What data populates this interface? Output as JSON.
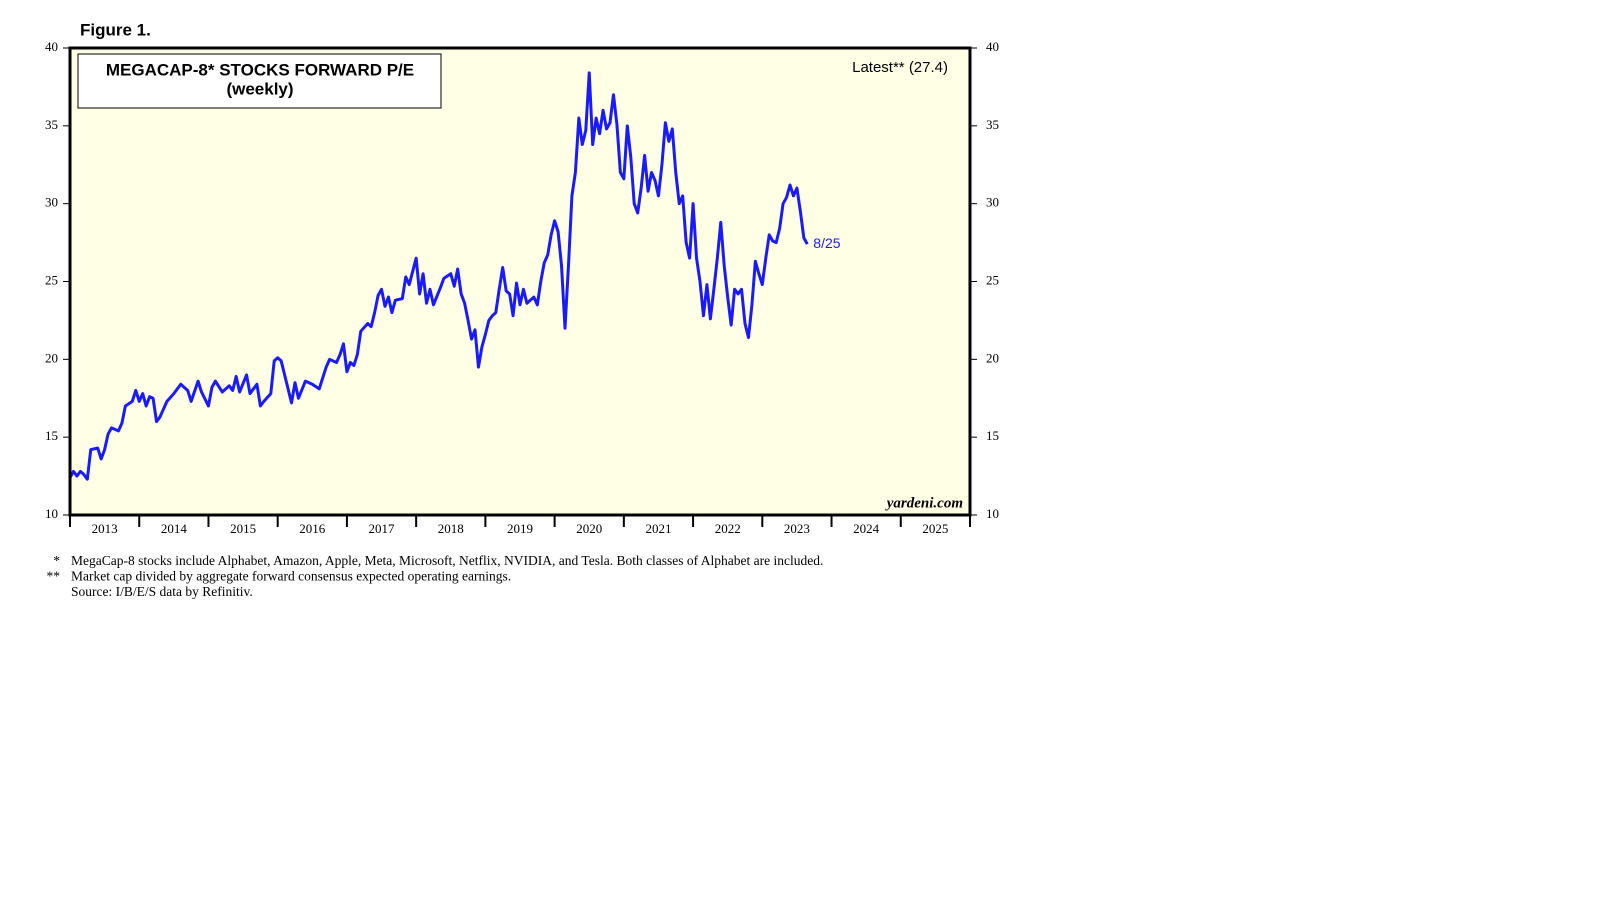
{
  "figure_label": "Figure 1.",
  "chart_data": {
    "type": "line",
    "title": "MEGACAP-8* STOCKS FORWARD P/E",
    "subtitle": "(weekly)",
    "annotation": "Latest** (27.4)",
    "end_label": "8/25",
    "watermark": "yardeni.com",
    "xlim": [
      2013,
      2026
    ],
    "xticks": [
      {
        "value": 2013.5,
        "label": "2013"
      },
      {
        "value": 2014.5,
        "label": "2014"
      },
      {
        "value": 2015.5,
        "label": "2015"
      },
      {
        "value": 2016.5,
        "label": "2016"
      },
      {
        "value": 2017.5,
        "label": "2017"
      },
      {
        "value": 2018.5,
        "label": "2018"
      },
      {
        "value": 2019.5,
        "label": "2019"
      },
      {
        "value": 2020.5,
        "label": "2020"
      },
      {
        "value": 2021.5,
        "label": "2021"
      },
      {
        "value": 2022.5,
        "label": "2022"
      },
      {
        "value": 2023.5,
        "label": "2023"
      },
      {
        "value": 2024.5,
        "label": "2024"
      },
      {
        "value": 2025.5,
        "label": "2025"
      }
    ],
    "ylim": [
      10,
      40
    ],
    "yticks": [
      10,
      15,
      20,
      25,
      30,
      35,
      40
    ],
    "y2lim": [
      10,
      40
    ],
    "y2ticks": [
      10,
      15,
      20,
      25,
      30,
      35,
      40
    ],
    "x": [
      2013.0,
      2013.05,
      2013.1,
      2013.15,
      2013.2,
      2013.25,
      2013.3,
      2013.4,
      2013.45,
      2013.5,
      2013.55,
      2013.6,
      2013.7,
      2013.75,
      2013.8,
      2013.9,
      2013.95,
      2014.0,
      2014.05,
      2014.1,
      2014.15,
      2014.2,
      2014.25,
      2014.3,
      2014.4,
      2014.5,
      2014.6,
      2014.7,
      2014.75,
      2014.85,
      2014.9,
      2015.0,
      2015.05,
      2015.1,
      2015.2,
      2015.3,
      2015.35,
      2015.4,
      2015.45,
      2015.55,
      2015.6,
      2015.7,
      2015.75,
      2015.8,
      2015.9,
      2015.95,
      2016.0,
      2016.05,
      2016.1,
      2016.15,
      2016.2,
      2016.25,
      2016.3,
      2016.4,
      2016.5,
      2016.6,
      2016.7,
      2016.75,
      2016.85,
      2016.9,
      2016.95,
      2017.0,
      2017.05,
      2017.1,
      2017.15,
      2017.2,
      2017.3,
      2017.35,
      2017.4,
      2017.45,
      2017.5,
      2017.55,
      2017.6,
      2017.65,
      2017.7,
      2017.8,
      2017.85,
      2017.9,
      2018.0,
      2018.05,
      2018.1,
      2018.15,
      2018.2,
      2018.25,
      2018.35,
      2018.4,
      2018.5,
      2018.55,
      2018.6,
      2018.65,
      2018.7,
      2018.75,
      2018.8,
      2018.85,
      2018.9,
      2018.95,
      2019.0,
      2019.05,
      2019.1,
      2019.15,
      2019.2,
      2019.25,
      2019.3,
      2019.35,
      2019.4,
      2019.45,
      2019.5,
      2019.55,
      2019.6,
      2019.7,
      2019.75,
      2019.8,
      2019.85,
      2019.9,
      2019.95,
      2020.0,
      2020.05,
      2020.1,
      2020.15,
      2020.2,
      2020.25,
      2020.3,
      2020.35,
      2020.4,
      2020.45,
      2020.5,
      2020.55,
      2020.6,
      2020.65,
      2020.7,
      2020.75,
      2020.8,
      2020.85,
      2020.9,
      2020.95,
      2021.0,
      2021.05,
      2021.1,
      2021.15,
      2021.2,
      2021.25,
      2021.3,
      2021.35,
      2021.4,
      2021.45,
      2021.5,
      2021.55,
      2021.6,
      2021.65,
      2021.7,
      2021.75,
      2021.8,
      2021.85,
      2021.9,
      2021.95,
      2022.0,
      2022.05,
      2022.1,
      2022.15,
      2022.2,
      2022.25,
      2022.3,
      2022.35,
      2022.4,
      2022.45,
      2022.5,
      2022.55,
      2022.6,
      2022.65,
      2022.7,
      2022.75,
      2022.8,
      2022.85,
      2022.9,
      2022.95,
      2023.0,
      2023.05,
      2023.1,
      2023.15,
      2023.2,
      2023.25,
      2023.3,
      2023.35,
      2023.4,
      2023.45,
      2023.5,
      2023.55,
      2023.6,
      2023.65
    ],
    "series": [
      {
        "name": "MegaCap-8 forward P/E",
        "color": "#1a1aff",
        "values": [
          12.4,
          12.8,
          12.5,
          12.8,
          12.6,
          12.3,
          14.2,
          14.3,
          13.6,
          14.2,
          15.2,
          15.6,
          15.4,
          15.9,
          17.0,
          17.3,
          18.0,
          17.3,
          17.8,
          17.0,
          17.6,
          17.5,
          16.0,
          16.3,
          17.3,
          17.8,
          18.4,
          18.0,
          17.3,
          18.6,
          17.9,
          17.0,
          18.2,
          18.6,
          17.9,
          18.3,
          18.0,
          18.9,
          17.9,
          19.0,
          17.8,
          18.4,
          17.0,
          17.3,
          17.8,
          19.9,
          20.1,
          19.9,
          19.0,
          18.1,
          17.2,
          18.5,
          17.5,
          18.6,
          18.4,
          18.1,
          19.5,
          20.0,
          19.8,
          20.3,
          21.0,
          19.2,
          19.8,
          19.6,
          20.3,
          21.8,
          22.3,
          22.1,
          23.0,
          24.1,
          24.5,
          23.4,
          24.0,
          23.0,
          23.8,
          23.9,
          25.3,
          24.8,
          26.5,
          24.2,
          25.5,
          23.6,
          24.5,
          23.5,
          24.6,
          25.2,
          25.5,
          24.7,
          25.8,
          24.2,
          23.6,
          22.5,
          21.3,
          21.9,
          19.5,
          20.8,
          21.6,
          22.5,
          22.8,
          23.0,
          24.5,
          25.9,
          24.4,
          24.2,
          22.8,
          24.9,
          23.5,
          24.5,
          23.6,
          24.0,
          23.5,
          25.0,
          26.2,
          26.7,
          28.0,
          28.9,
          28.2,
          26.0,
          22.0,
          26.0,
          30.5,
          32.0,
          35.5,
          33.8,
          34.7,
          38.4,
          33.8,
          35.5,
          34.5,
          36.0,
          34.8,
          35.2,
          37.0,
          35.1,
          32.0,
          31.6,
          35.0,
          33.0,
          30.0,
          29.4,
          31.0,
          33.1,
          30.8,
          32.0,
          31.5,
          30.5,
          32.5,
          35.2,
          34.0,
          34.8,
          32.0,
          30.0,
          30.5,
          27.5,
          26.5,
          30.0,
          26.5,
          25.0,
          22.8,
          24.8,
          22.6,
          24.5,
          26.5,
          28.8,
          26.0,
          24.0,
          22.2,
          24.5,
          24.2,
          24.5,
          22.3,
          21.4,
          23.5,
          26.3,
          25.5,
          24.8,
          26.5,
          28.0,
          27.6,
          27.5,
          28.4,
          30.0,
          30.4,
          31.2,
          30.5,
          31.0,
          29.5,
          27.8,
          27.4
        ]
      }
    ],
    "background": "#ffffe6"
  },
  "footnotes": [
    {
      "marker": "*",
      "text": "MegaCap-8 stocks include Alphabet, Amazon, Apple, Meta, Microsoft, Netflix, NVIDIA, and Tesla. Both classes of Alphabet are included."
    },
    {
      "marker": "**",
      "text": "Market cap divided by aggregate forward consensus expected operating earnings."
    }
  ],
  "source": "Source: I/B/E/S data by Refinitiv."
}
